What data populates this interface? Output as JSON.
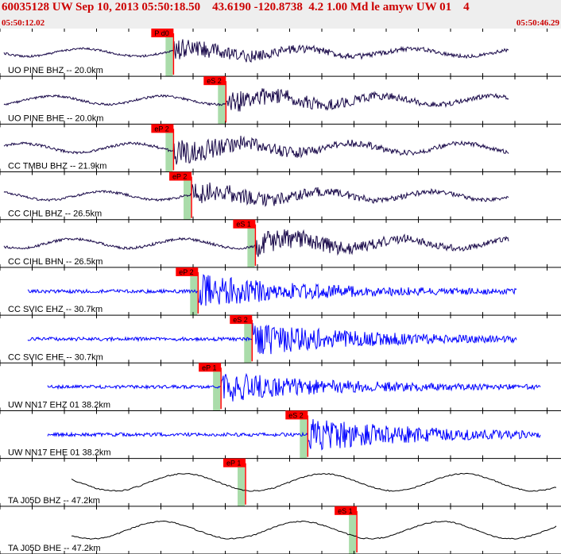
{
  "header": {
    "title": "60035128 UW Sep 10, 2013 05:50:18.50    43.6190 -120.8738  4.2 1.00 Md le amyw UW 01    4",
    "start_time": "05:50:12.02",
    "end_time": "05:50:46.29"
  },
  "colors": {
    "header_text": "#cc0000",
    "pick": "#ff0000",
    "window": "#aadcaa",
    "trace_dark": "#1a0a4a",
    "trace_blue": "#0000ff",
    "trace_black": "#000000"
  },
  "chart_data": {
    "type": "line",
    "time_range": [
      "05:50:12.02",
      "05:50:46.29"
    ],
    "traces": [
      {
        "label": "UO PINE BHZ -- 20.0km",
        "color": "trace_dark",
        "pick": "P d0",
        "pick_time": 10.6,
        "amp": 0.45
      },
      {
        "label": "UO PINE BHE -- 20.0km",
        "color": "trace_dark",
        "pick": "eS 2",
        "pick_time": 13.8,
        "amp": 0.5
      },
      {
        "label": "CC TMBU BHZ -- 21.9km",
        "color": "trace_dark",
        "pick": "eP 2",
        "pick_time": 10.6,
        "amp": 0.55
      },
      {
        "label": "CC CIHL BHZ -- 26.5km",
        "color": "trace_dark",
        "pick": "eP 2",
        "pick_time": 11.7,
        "amp": 0.5
      },
      {
        "label": "CC CIHL BHN -- 26.5km",
        "color": "trace_dark",
        "pick": "eS 1",
        "pick_time": 15.6,
        "amp": 0.55
      },
      {
        "label": "CC SVIC EHZ -- 30.7km",
        "color": "trace_blue",
        "pick": "eP 2",
        "pick_time": 12.1,
        "amp": 0.6
      },
      {
        "label": "CC SVIC EHE -- 30.7km",
        "color": "trace_blue",
        "pick": "eS 2",
        "pick_time": 15.4,
        "amp": 0.6
      },
      {
        "label": "UW NN17 EHZ 01 38.2km",
        "color": "trace_blue",
        "pick": "eP 1",
        "pick_time": 13.5,
        "amp": 0.55
      },
      {
        "label": "UW NN17 EHE 01 38.2km",
        "color": "trace_blue",
        "pick": "eS 2",
        "pick_time": 18.8,
        "amp": 0.6
      },
      {
        "label": "TA J05D BHZ -- 47.2km",
        "color": "trace_black",
        "pick": "eP 1",
        "pick_time": 15.0,
        "amp": 0.45
      },
      {
        "label": "TA J05D BHE -- 47.2km",
        "color": "trace_black",
        "pick": "eS 1",
        "pick_time": 21.8,
        "amp": 0.45
      }
    ]
  }
}
